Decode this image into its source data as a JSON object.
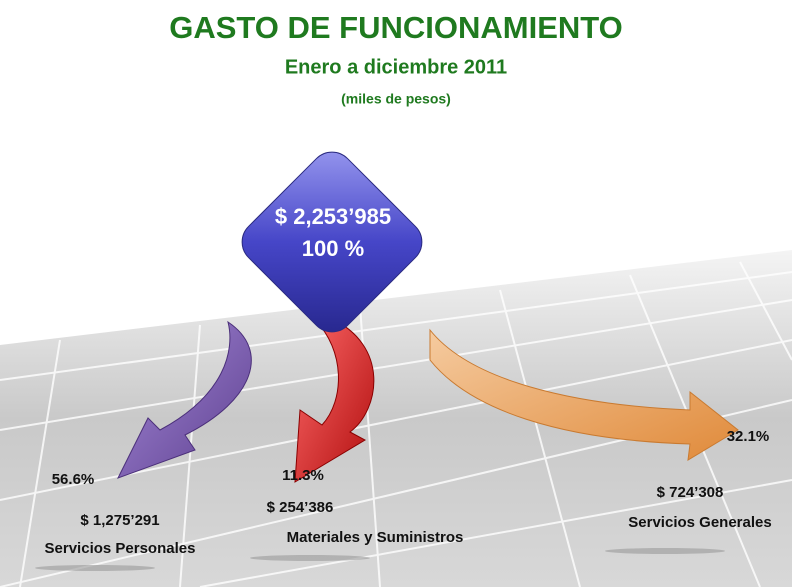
{
  "header": {
    "title": "GASTO DE FUNCIONAMIENTO",
    "subtitle": "Enero a diciembre 2011",
    "unit": "(miles de pesos)"
  },
  "total": {
    "amount": "$ 2,253’985",
    "percent": "100 %"
  },
  "branches": [
    {
      "percent": "56.6%",
      "amount": "$ 1,275’291",
      "label": "Servicios Personales"
    },
    {
      "percent": "11.3%",
      "amount": "$ 254’386",
      "label": "Materiales y Suministros"
    },
    {
      "percent": "32.1%",
      "amount": "$ 724’308",
      "label": "Servicios Generales"
    }
  ]
}
